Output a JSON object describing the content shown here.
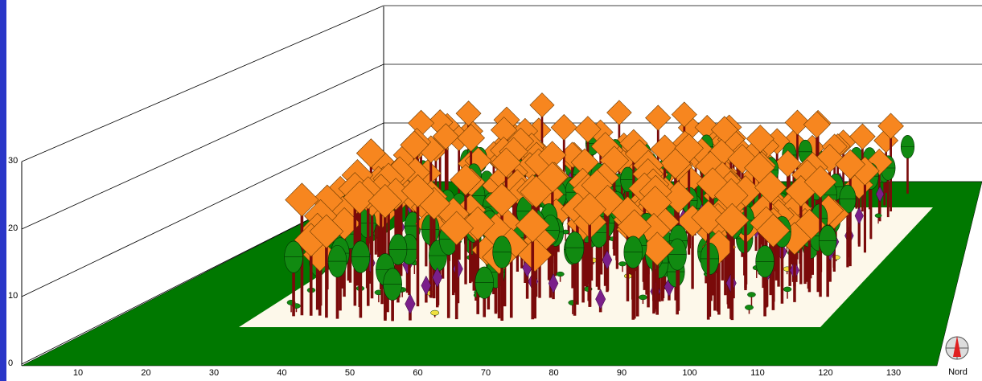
{
  "y_axis": {
    "ticks": [
      0,
      10,
      20,
      30
    ]
  },
  "x_axis": {
    "ticks": [
      10,
      20,
      30,
      40,
      50,
      60,
      70,
      80,
      90,
      100,
      110,
      120,
      130
    ]
  },
  "compass": {
    "label": "Nord"
  }
}
